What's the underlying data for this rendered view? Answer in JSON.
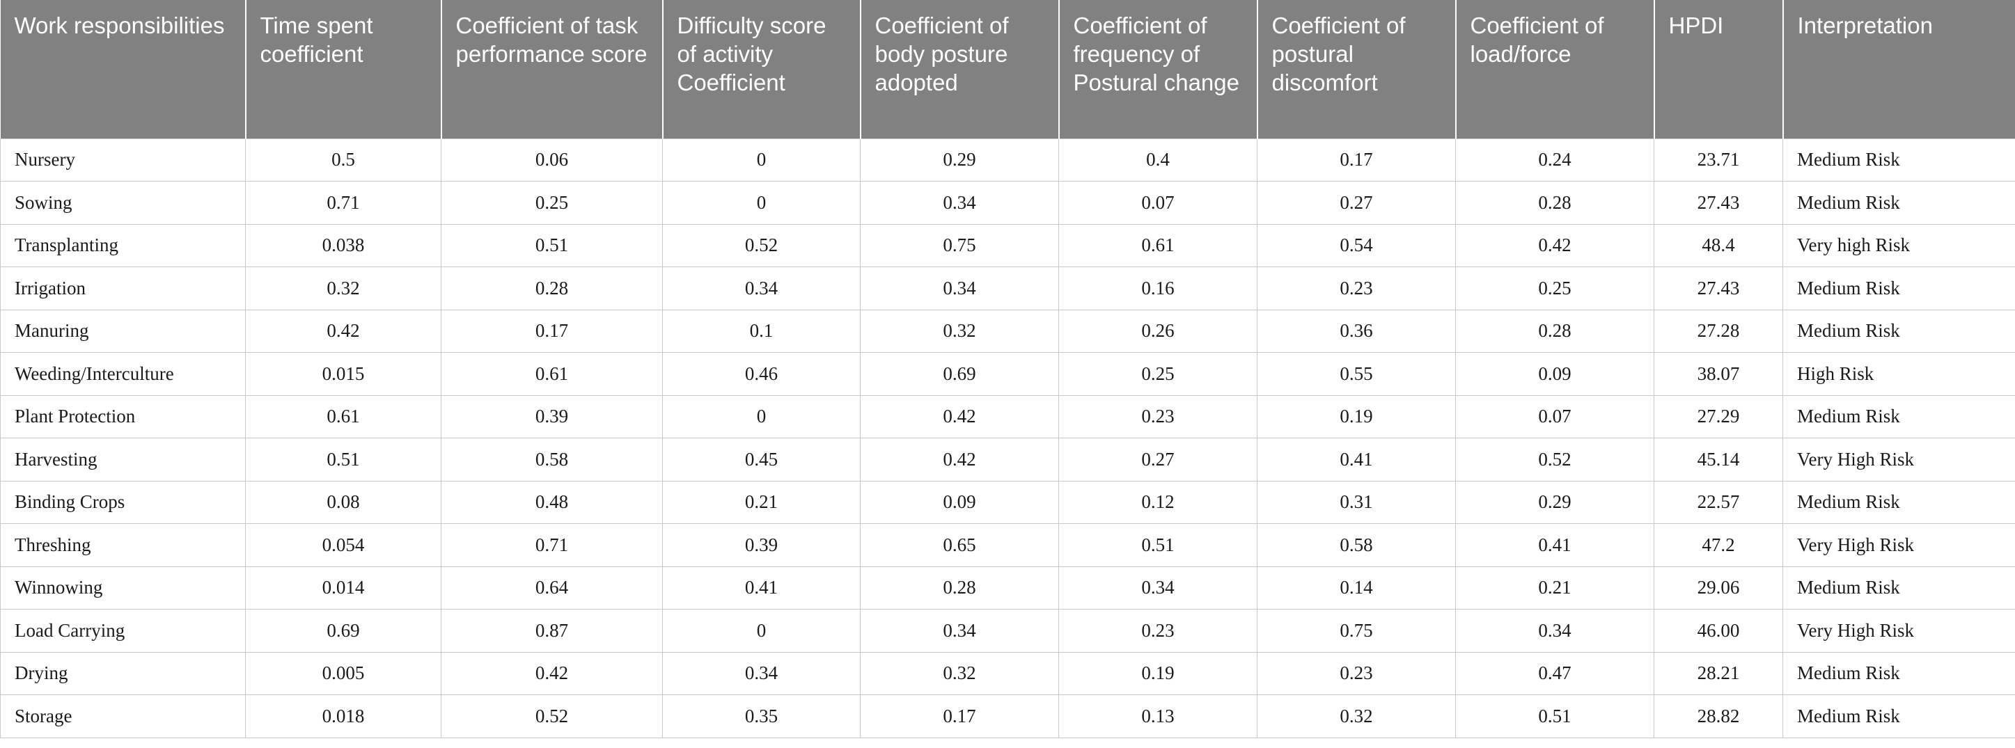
{
  "table": {
    "headers": [
      "Work responsibilities",
      "Time spent coefficient",
      "Coefficient of task performance score",
      "Difficulty score of activity Coefficient",
      "Coefficient of body posture adopted",
      "Coefficient of frequency of Postural change",
      "Coefficient of postural discomfort",
      "Coefficient of load/force",
      "HPDI",
      "Interpretation"
    ],
    "rows": [
      [
        "Nursery",
        "0.5",
        "0.06",
        "0",
        "0.29",
        "0.4",
        "0.17",
        "0.24",
        "23.71",
        "Medium Risk"
      ],
      [
        "Sowing",
        "0.71",
        "0.25",
        "0",
        "0.34",
        "0.07",
        "0.27",
        "0.28",
        "27.43",
        "Medium Risk"
      ],
      [
        "Transplanting",
        "0.038",
        "0.51",
        "0.52",
        "0.75",
        "0.61",
        "0.54",
        "0.42",
        "48.4",
        "Very high Risk"
      ],
      [
        "Irrigation",
        "0.32",
        "0.28",
        "0.34",
        "0.34",
        "0.16",
        "0.23",
        "0.25",
        "27.43",
        "Medium Risk"
      ],
      [
        "Manuring",
        "0.42",
        "0.17",
        "0.1",
        "0.32",
        "0.26",
        "0.36",
        "0.28",
        "27.28",
        "Medium Risk"
      ],
      [
        "Weeding/Interculture",
        "0.015",
        "0.61",
        "0.46",
        "0.69",
        "0.25",
        "0.55",
        "0.09",
        "38.07",
        "High Risk"
      ],
      [
        "Plant Protection",
        "0.61",
        "0.39",
        "0",
        "0.42",
        "0.23",
        "0.19",
        "0.07",
        "27.29",
        "Medium Risk"
      ],
      [
        "Harvesting",
        "0.51",
        "0.58",
        "0.45",
        "0.42",
        "0.27",
        "0.41",
        "0.52",
        "45.14",
        "Very High Risk"
      ],
      [
        "Binding Crops",
        "0.08",
        "0.48",
        "0.21",
        "0.09",
        "0.12",
        "0.31",
        "0.29",
        "22.57",
        "Medium Risk"
      ],
      [
        "Threshing",
        "0.054",
        "0.71",
        "0.39",
        "0.65",
        "0.51",
        "0.58",
        "0.41",
        "47.2",
        "Very High Risk"
      ],
      [
        "Winnowing",
        "0.014",
        "0.64",
        "0.41",
        "0.28",
        "0.34",
        "0.14",
        "0.21",
        "29.06",
        "Medium Risk"
      ],
      [
        "Load Carrying",
        "0.69",
        "0.87",
        "0",
        "0.34",
        "0.23",
        "0.75",
        "0.34",
        "46.00",
        "Very High Risk"
      ],
      [
        "Drying",
        "0.005",
        "0.42",
        "0.34",
        "0.32",
        "0.19",
        "0.23",
        "0.47",
        "28.21",
        "Medium Risk"
      ],
      [
        "Storage",
        "0.018",
        "0.52",
        "0.35",
        "0.17",
        "0.13",
        "0.32",
        "0.51",
        "28.82",
        "Medium Risk"
      ]
    ]
  }
}
